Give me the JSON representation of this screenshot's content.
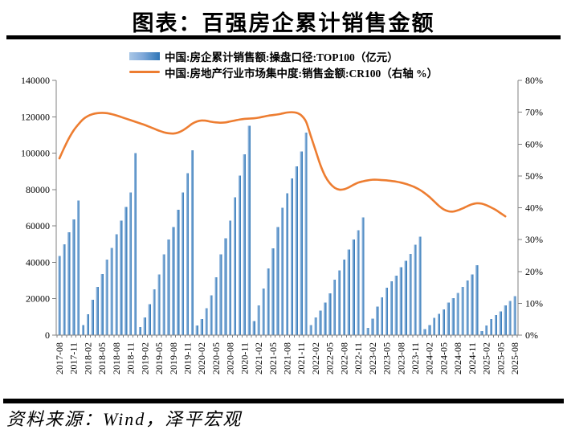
{
  "page": {
    "title": "图表：百强房企累计销售金额",
    "source": "资料来源：Wind，泽平宏观"
  },
  "chart_data": {
    "type": "combo",
    "legend_position": "top",
    "grid": false,
    "x_range": [
      "2017-08",
      "2025-08"
    ],
    "x_tick_labels": [
      "2017-08",
      "2017-11",
      "2018-02",
      "2018-05",
      "2018-08",
      "2018-11",
      "2019-02",
      "2019-05",
      "2019-08",
      "2019-11",
      "2020-02",
      "2020-05",
      "2020-08",
      "2020-11",
      "2021-02",
      "2021-05",
      "2021-08",
      "2021-11",
      "2022-02",
      "2022-05",
      "2022-08",
      "2022-11",
      "2023-02",
      "2023-05",
      "2023-08",
      "2023-11",
      "2024-02",
      "2024-05",
      "2024-08",
      "2024-11",
      "2025-02",
      "2025-05",
      "2025-08"
    ],
    "x_tick_step_months": 3,
    "left_axis": {
      "min": 0,
      "max": 140000,
      "ticks": [
        "0",
        "20000",
        "40000",
        "60000",
        "80000",
        "100000",
        "120000",
        "140000"
      ]
    },
    "right_axis": {
      "min": 0,
      "max": 80,
      "ticks": [
        "0%",
        "10%",
        "20%",
        "30%",
        "40%",
        "50%",
        "60%",
        "70%",
        "80%"
      ]
    },
    "series": [
      {
        "name": "中国:房企累计销售额:操盘口径:TOP100（亿元）",
        "type": "bar",
        "axis": "left",
        "color_start": "#a8c6e6",
        "color_end": "#2e75b6",
        "values": [
          43500,
          50000,
          56500,
          63500,
          74000,
          5500,
          11500,
          19500,
          26500,
          33500,
          41500,
          48000,
          55500,
          63000,
          70500,
          78500,
          100000,
          4500,
          9700,
          17000,
          25200,
          33300,
          44400,
          52600,
          59300,
          68900,
          78500,
          89000,
          101500,
          5200,
          8900,
          14800,
          21800,
          31900,
          44400,
          53300,
          63000,
          75800,
          87600,
          99400,
          115000,
          7800,
          16300,
          25600,
          36600,
          47700,
          59500,
          69900,
          78000,
          86100,
          92700,
          100900,
          111200,
          5600,
          9700,
          13400,
          17900,
          23000,
          30400,
          35600,
          41500,
          47000,
          52600,
          57700,
          64700,
          3900,
          9000,
          15700,
          20800,
          26000,
          29700,
          32700,
          37400,
          40800,
          44500,
          49600,
          54200,
          3400,
          5500,
          9600,
          11800,
          14200,
          17800,
          20400,
          23200,
          26600,
          30000,
          33300,
          38500,
          2200,
          5300,
          8800,
          11000,
          13000,
          16400,
          18800,
          21500
        ]
      },
      {
        "name": "中国:房地产行业市场集中度:销售金额:CR100（右轴 %）",
        "type": "line",
        "axis": "right",
        "color": "#ed7d31",
        "values": [
          55.5,
          58.8,
          61.8,
          64.3,
          66.2,
          67.8,
          68.8,
          69.4,
          69.7,
          69.8,
          69.7,
          69.4,
          69.0,
          68.5,
          68.0,
          67.5,
          67.0,
          66.5,
          66.0,
          65.4,
          64.8,
          64.2,
          63.7,
          63.4,
          63.3,
          63.6,
          64.3,
          65.3,
          66.4,
          67.1,
          67.4,
          67.3,
          67.0,
          66.8,
          66.7,
          66.8,
          67.1,
          67.4,
          67.7,
          67.9,
          68.0,
          68.1,
          68.3,
          68.6,
          68.9,
          69.1,
          69.3,
          69.6,
          69.9,
          70.0,
          69.8,
          69.0,
          67.0,
          62.5,
          58.0,
          53.5,
          50.0,
          47.7,
          46.3,
          45.7,
          45.8,
          46.4,
          47.2,
          47.9,
          48.3,
          48.6,
          48.8,
          48.8,
          48.7,
          48.6,
          48.4,
          48.2,
          47.9,
          47.5,
          47.0,
          46.4,
          45.6,
          44.6,
          43.4,
          42.0,
          40.6,
          39.5,
          38.9,
          38.8,
          39.2,
          39.8,
          40.5,
          41.1,
          41.4,
          41.3,
          40.8,
          40.1,
          39.3,
          38.3,
          37.3,
          null,
          null
        ]
      }
    ]
  }
}
